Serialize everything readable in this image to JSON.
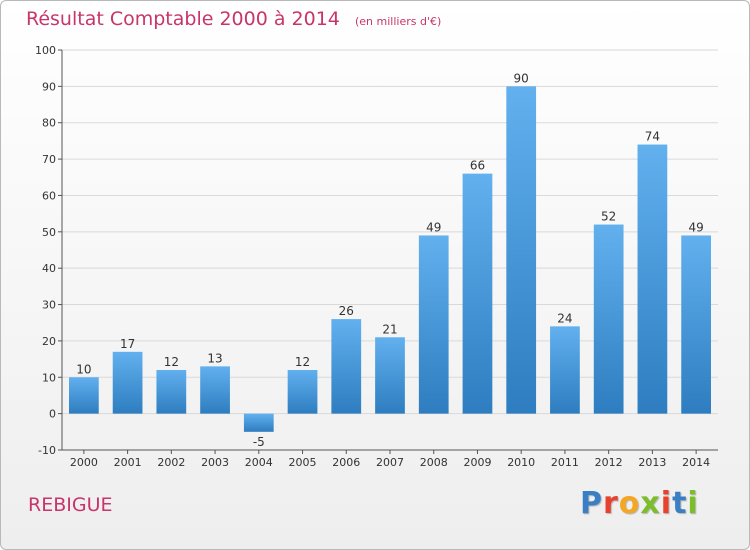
{
  "colors": {
    "title": "#c8356a",
    "bar_top": "#62b0ee",
    "bar_bottom": "#2d7dc0",
    "grid": "#d9d9d9"
  },
  "header": {
    "title": "Résultat Comptable 2000 à 2014",
    "unit": "(en milliers d'€)"
  },
  "footer": {
    "commune": "REBIGUE",
    "logo": "Proxiti"
  },
  "chart_data": {
    "type": "bar",
    "title": "Résultat Comptable 2000 à 2014",
    "subtitle": "(en milliers d'€)",
    "xlabel": "",
    "ylabel": "",
    "categories": [
      "2000",
      "2001",
      "2002",
      "2003",
      "2004",
      "2005",
      "2006",
      "2007",
      "2008",
      "2009",
      "2010",
      "2011",
      "2012",
      "2013",
      "2014"
    ],
    "values": [
      10,
      17,
      12,
      13,
      -5,
      12,
      26,
      21,
      49,
      66,
      90,
      24,
      52,
      74,
      49
    ],
    "ylim": [
      -10,
      100
    ],
    "yticks": [
      -10,
      0,
      10,
      20,
      30,
      40,
      50,
      60,
      70,
      80,
      90,
      100
    ],
    "grid": true,
    "legend": "none"
  }
}
